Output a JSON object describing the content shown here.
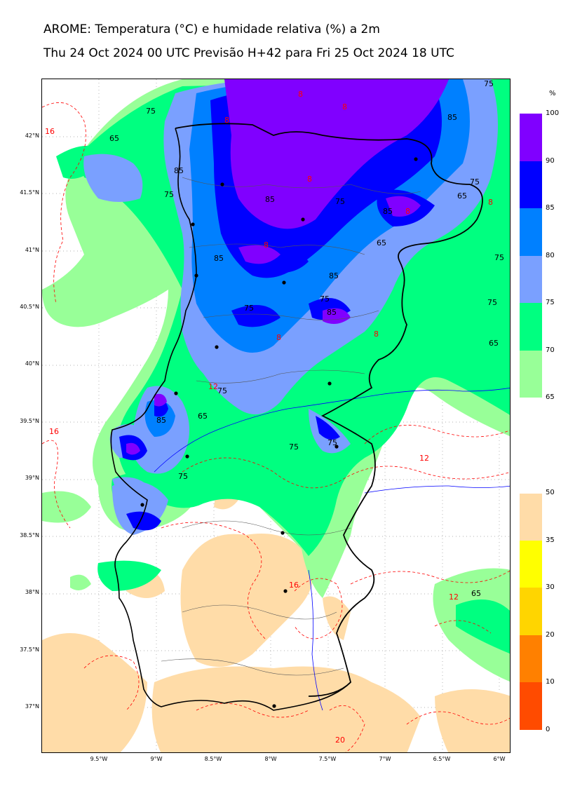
{
  "header": {
    "title": "AROME: Temperatura (°C) e humidade relativa (%) a 2m",
    "subtitle": "Thu 24 Oct 2024 00 UTC Previsão H+42 para Fri 25 Oct 2024 18 UTC"
  },
  "map": {
    "lat_labels": [
      "42°N",
      "41.5°N",
      "41°N",
      "40.5°N",
      "40°N",
      "39.5°N",
      "39°N",
      "38.5°N",
      "38°N",
      "37.5°N",
      "37°N"
    ],
    "lon_labels": [
      "9.5°W",
      "9°W",
      "8.5°W",
      "8°W",
      "7.5°W",
      "7°W",
      "6.5°W",
      "6°W"
    ],
    "humidity_contour_labels": [
      "65",
      "75",
      "85"
    ],
    "temperature_contour_labels": [
      "8",
      "12",
      "16",
      "20"
    ],
    "colors": {
      "rh_65": "#98ff98",
      "rh_70": "#00ff80",
      "rh_75": "#7aa0ff",
      "rh_80": "#0080ff",
      "rh_85": "#0000ff",
      "rh_90": "#8000ff",
      "t_low": "#ffdca8",
      "coast": "#000000",
      "temp_contour": "#ff0000",
      "river": "#0000ff"
    }
  },
  "humidity_legend": {
    "unit": "%",
    "ticks": [
      "100",
      "90",
      "85",
      "80",
      "75",
      "70",
      "65"
    ]
  },
  "temperature_legend": {
    "ticks": [
      "50",
      "35",
      "30",
      "20",
      "10",
      "0"
    ]
  }
}
